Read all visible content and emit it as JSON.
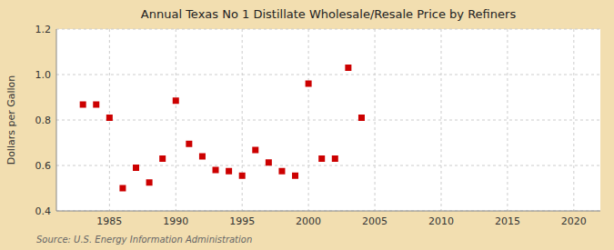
{
  "chart_data": {
    "type": "scatter",
    "title": "Annual Texas No 1 Distillate Wholesale/Resale Price by Refiners",
    "ylabel": "Dollars per Gallon",
    "annotations": [
      "Source: U.S. Energy Information Administration"
    ],
    "x": [
      1983,
      1984,
      1985,
      1986,
      1987,
      1988,
      1989,
      1990,
      1991,
      1992,
      1993,
      1994,
      1995,
      1996,
      1997,
      1998,
      1999,
      2000,
      2001,
      2002,
      2003,
      2004
    ],
    "values": [
      0.868,
      0.868,
      0.81,
      0.5,
      0.59,
      0.525,
      0.63,
      0.885,
      0.695,
      0.64,
      0.58,
      0.575,
      0.555,
      0.668,
      0.613,
      0.575,
      0.555,
      0.96,
      0.63,
      0.63,
      1.03,
      0.81
    ],
    "color": "#cc0000",
    "marker": "square",
    "xlim": [
      1981,
      2022
    ],
    "ylim": [
      0.4,
      1.2
    ],
    "xticks": [
      1985,
      1990,
      1995,
      2000,
      2005,
      2010,
      2015,
      2020
    ],
    "yticks": [
      0.4,
      0.6,
      0.8,
      {
        "value": 1.0,
        "label": "1.0"
      },
      1.2
    ],
    "grid": true
  }
}
